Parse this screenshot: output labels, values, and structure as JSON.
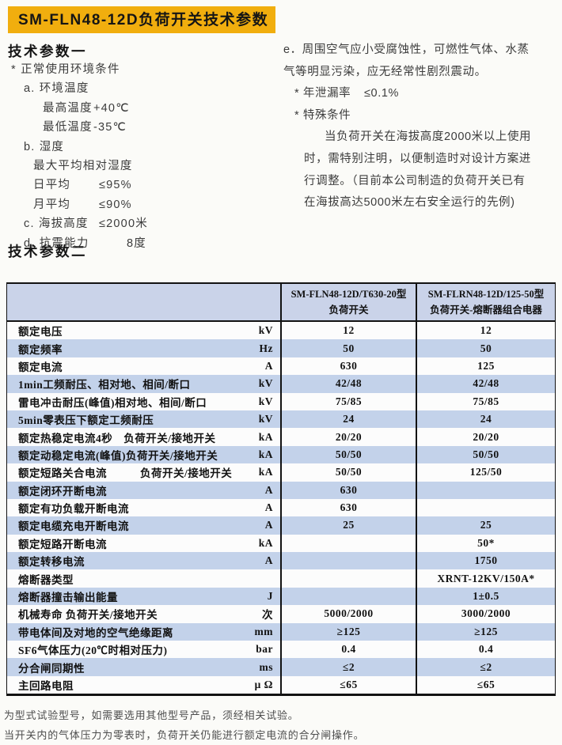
{
  "page": {
    "title": "SM-FLN48-12D负荷开关技术参数"
  },
  "section1": {
    "heading": "技术参数一"
  },
  "section2": {
    "heading": "技术参数二"
  },
  "left_lines": [
    {
      "text": "* 正常使用环境条件",
      "indent": 4
    },
    {
      "text": "a. 环境温度",
      "indent": 20
    },
    {
      "label": "最高温度",
      "value": "+40℃",
      "indent": 44,
      "vx": 108
    },
    {
      "label": "最低温度",
      "value": "-35℃",
      "indent": 44,
      "vx": 108
    },
    {
      "text": "b. 湿度",
      "indent": 20
    },
    {
      "text": "最大平均相对湿度",
      "indent": 32
    },
    {
      "label": "日平均",
      "value": "≤95%",
      "indent": 32,
      "vx": 115
    },
    {
      "label": "月平均",
      "value": "≤90%",
      "indent": 32,
      "vx": 115
    },
    {
      "label": "c. 海拔高度",
      "value": "≤2000米",
      "indent": 20,
      "vx": 115
    },
    {
      "label": "d. 抗震能力",
      "value": "8度",
      "indent": 20,
      "vx": 150
    }
  ],
  "right_lines": [
    {
      "text": "e．周围空气应小受腐蚀性，可燃性气体、水蒸",
      "indent": 0
    },
    {
      "text": "气等明显污染，应无经常性剧烈震动。",
      "indent": 0
    },
    {
      "label": "* 年泄漏率",
      "value": "≤0.1%",
      "indent": 14,
      "vx": 102
    },
    {
      "text": "* 特殊条件",
      "indent": 14
    },
    {
      "text": "当负荷开关在海拔高度2000米以上使用",
      "indent": 52
    },
    {
      "text": "时，需特别注明，以便制造时对设计方案进",
      "indent": 26
    },
    {
      "text": "行调整。（目前本公司制造的负荷开关已有",
      "indent": 26
    },
    {
      "text": "在海拔高达5000米左右安全运行的先例)",
      "indent": 26
    }
  ],
  "table": {
    "headers": [
      {
        "line1": "SM-FLN48-12D/T630-20型",
        "line2": "负荷开关"
      },
      {
        "line1": "SM-FLRN48-12D/125-50型",
        "line2": "负荷开关-熔断器组合电器"
      }
    ],
    "rows": [
      {
        "name": "额定电压",
        "unit": "kV",
        "v1": "12",
        "v2": "12"
      },
      {
        "name": "额定频率",
        "unit": "Hz",
        "v1": "50",
        "v2": "50"
      },
      {
        "name": "额定电流",
        "unit": "A",
        "v1": "630",
        "v2": "125"
      },
      {
        "name": "1min工频耐压、相对地、相间/断口",
        "unit": "kV",
        "v1": "42/48",
        "v2": "42/48"
      },
      {
        "name": "雷电冲击耐压(峰值)相对地、相间/断口",
        "unit": "kV",
        "v1": "75/85",
        "v2": "75/85"
      },
      {
        "name": "5min零表压下额定工频耐压",
        "unit": "kV",
        "v1": "24",
        "v2": "24"
      },
      {
        "name": "额定热稳定电流4秒　负荷开关/接地开关",
        "unit": "kA",
        "v1": "20/20",
        "v2": "20/20"
      },
      {
        "name": "额定动稳定电流(峰值)负荷开关/接地开关",
        "unit": "kA",
        "v1": "50/50",
        "v2": "50/50"
      },
      {
        "name": "额定短路关合电流　　　负荷开关/接地开关",
        "unit": "kA",
        "v1": "50/50",
        "v2": "125/50"
      },
      {
        "name": "额定闭环开断电流",
        "unit": "A",
        "v1": "630",
        "v2": ""
      },
      {
        "name": "额定有功负载开断电流",
        "unit": "A",
        "v1": "630",
        "v2": ""
      },
      {
        "name": "额定电缆充电开断电流",
        "unit": "A",
        "v1": "25",
        "v2": "25"
      },
      {
        "name": "额定短路开断电流",
        "unit": "kA",
        "v1": "",
        "v2": "50*"
      },
      {
        "name": "额定转移电流",
        "unit": "A",
        "v1": "",
        "v2": "1750"
      },
      {
        "name": "熔断器类型",
        "unit": "",
        "v1": "",
        "v2": "XRNT-12KV/150A*"
      },
      {
        "name": "熔断器撞击输出能量",
        "unit": "J",
        "v1": "",
        "v2": "1±0.5"
      },
      {
        "name": "机械寿命 负荷开关/接地开关",
        "unit": "次",
        "v1": "5000/2000",
        "v2": "3000/2000"
      },
      {
        "name": "带电体间及对地的空气绝缘距离",
        "unit": "mm",
        "v1": "≥125",
        "v2": "≥125"
      },
      {
        "name": "SF6气体压力(20℃时相对压力)",
        "unit": "bar",
        "v1": "0.4",
        "v2": "0.4"
      },
      {
        "name": "分合闸同期性",
        "unit": "ms",
        "v1": "≤2",
        "v2": "≤2"
      },
      {
        "name": "主回路电阻",
        "unit": "μ Ω",
        "v1": "≤65",
        "v2": "≤65"
      }
    ]
  },
  "footnotes": [
    "为型式试验型号，如需要选用其他型号产品，须经相关试验。",
    "当开关内的气体压力为零表时，负荷开关仍能进行额定电流的合分闸操作。"
  ],
  "colors": {
    "title_bg": "#f1ae0e",
    "table_header_bg": "#cad3e9",
    "row_blue": "#c3d2ea",
    "border": "#121212"
  }
}
